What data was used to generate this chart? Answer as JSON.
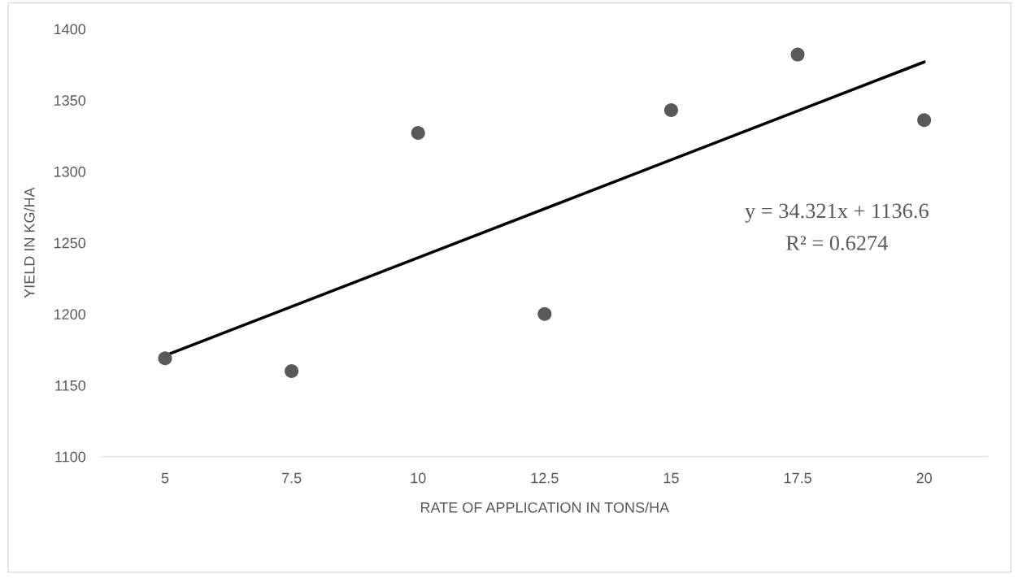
{
  "chart_data": {
    "type": "scatter",
    "xlabel": "RATE OF APPLICATION IN TONS/HA",
    "ylabel": "YIELD IN KG/HA",
    "series": [
      {
        "marker": "circle",
        "color": "#595959",
        "x": [
          5,
          7.5,
          10,
          12.5,
          15,
          17.5,
          20
        ],
        "values": [
          1169,
          1160,
          1327,
          1200,
          1343,
          1382,
          1336
        ]
      },
      {
        "type": "line",
        "color": "#000000",
        "x": [
          5,
          20
        ],
        "values": [
          1170.9,
          1376.8
        ]
      }
    ],
    "annotations": [
      "y = 34.321x + 1136.6",
      "R² = 0.6274"
    ],
    "xlim": [
      3.75,
      21.25
    ],
    "xticks": [
      5,
      7.5,
      10,
      12.5,
      15,
      17.5,
      20
    ],
    "ylim": [
      1100,
      1400
    ],
    "yticks": [
      1100,
      1150,
      1200,
      1250,
      1300,
      1350,
      1400
    ],
    "grid": false,
    "legend": false,
    "line_style": "solid"
  }
}
